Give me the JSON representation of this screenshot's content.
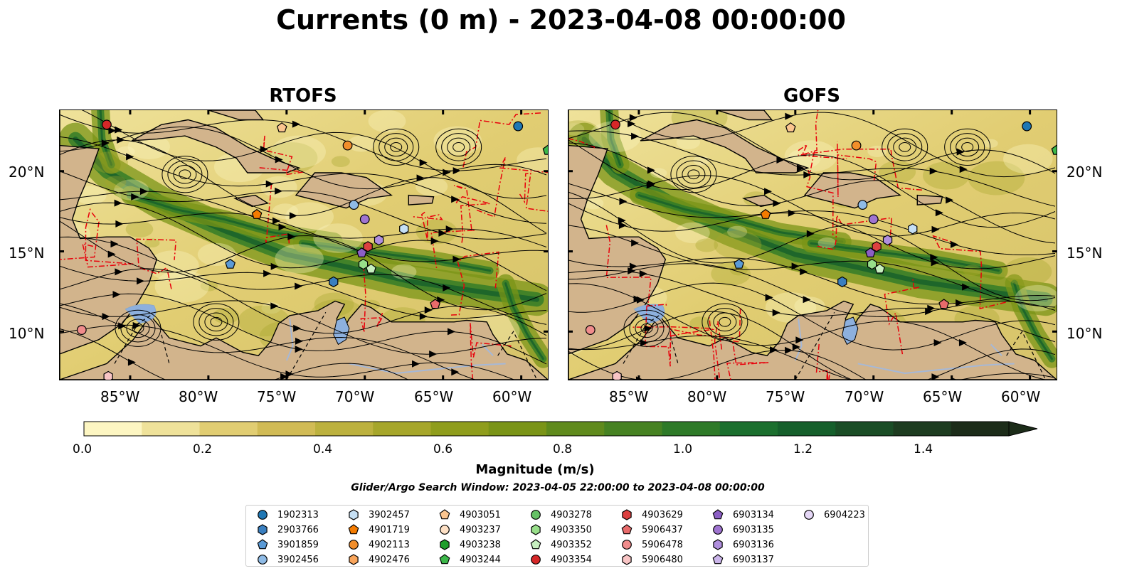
{
  "title": "Currents (0 m) - 2023-04-08 00:00:00",
  "panels": [
    {
      "title": "RTOFS"
    },
    {
      "title": "GOFS"
    }
  ],
  "lat_labels": [
    "20°N",
    "15°N",
    "10°N"
  ],
  "lon_labels": [
    "85°W",
    "80°W",
    "75°W",
    "70°W",
    "65°W",
    "60°W"
  ],
  "colorbar": {
    "label": "Magnitude (m/s)",
    "ticks": [
      "0.0",
      "0.2",
      "0.4",
      "0.6",
      "0.8",
      "1.0",
      "1.2",
      "1.4"
    ],
    "range": [
      0,
      1.6
    ],
    "step": 0.1,
    "extend": "max",
    "colors": [
      "#fdf6c2",
      "#efe29a",
      "#e1cd72",
      "#d1bb55",
      "#bcb13e",
      "#a6a62a",
      "#8f9d1c",
      "#7a9417",
      "#5f8a1c",
      "#468222",
      "#2e7a28",
      "#1b6f2e",
      "#155f2b",
      "#1a4d26",
      "#1d3c20",
      "#1c2c19"
    ]
  },
  "search_window": "Glider/Argo Search Window: 2023-04-05 22:00:00 to 2023-04-08 00:00:00",
  "land_color": "#d2b48c",
  "lake_color": "#8db0de",
  "legend": [
    {
      "id": "1902313",
      "color": "#1f77b4",
      "shape": "circle"
    },
    {
      "id": "2903766",
      "color": "#3a7fc0",
      "shape": "hexagon"
    },
    {
      "id": "3901859",
      "color": "#5a9ad6",
      "shape": "pentagon"
    },
    {
      "id": "3902456",
      "color": "#8fbbe6",
      "shape": "circle"
    },
    {
      "id": "3902457",
      "color": "#c6e0f5",
      "shape": "hexagon"
    },
    {
      "id": "4901719",
      "color": "#f47b00",
      "shape": "pentagon"
    },
    {
      "id": "4902113",
      "color": "#f28e2b",
      "shape": "circle"
    },
    {
      "id": "4902476",
      "color": "#f9a55b",
      "shape": "hexagon"
    },
    {
      "id": "4903051",
      "color": "#fbc58f",
      "shape": "pentagon"
    },
    {
      "id": "4903237",
      "color": "#fde0c5",
      "shape": "circle"
    },
    {
      "id": "4903238",
      "color": "#1f9e2c",
      "shape": "hexagon"
    },
    {
      "id": "4903244",
      "color": "#3cb84a",
      "shape": "pentagon"
    },
    {
      "id": "4903278",
      "color": "#66c266",
      "shape": "circle"
    },
    {
      "id": "4903350",
      "color": "#98df8a",
      "shape": "hexagon"
    },
    {
      "id": "4903352",
      "color": "#c7f0c0",
      "shape": "pentagon"
    },
    {
      "id": "4903354",
      "color": "#d62728",
      "shape": "circle"
    },
    {
      "id": "4903629",
      "color": "#dc4040",
      "shape": "hexagon"
    },
    {
      "id": "5906437",
      "color": "#e86b6b",
      "shape": "pentagon"
    },
    {
      "id": "5906478",
      "color": "#f08c8c",
      "shape": "circle"
    },
    {
      "id": "5906480",
      "color": "#f9c5c5",
      "shape": "hexagon"
    },
    {
      "id": "6903134",
      "color": "#8c5fc5",
      "shape": "pentagon"
    },
    {
      "id": "6903135",
      "color": "#9f74d0",
      "shape": "circle"
    },
    {
      "id": "6903136",
      "color": "#b08fde",
      "shape": "hexagon"
    },
    {
      "id": "6903137",
      "color": "#cbb5ea",
      "shape": "pentagon"
    },
    {
      "id": "6904223",
      "color": "#e5d7f6",
      "shape": "circle"
    }
  ],
  "floats": [
    {
      "id": "4903354",
      "lon": -86.5,
      "lat": 22.9
    },
    {
      "id": "4903051",
      "lon": -75.3,
      "lat": 22.7
    },
    {
      "id": "4902113",
      "lon": -71.1,
      "lat": 21.6
    },
    {
      "id": "1902313",
      "lon": -60.2,
      "lat": 22.8
    },
    {
      "id": "4903244",
      "lon": -58.3,
      "lat": 21.3
    },
    {
      "id": "4901719",
      "lon": -76.9,
      "lat": 17.3
    },
    {
      "id": "3902456",
      "lon": -70.7,
      "lat": 17.9
    },
    {
      "id": "6903135",
      "lon": -70.0,
      "lat": 17.0
    },
    {
      "id": "3902457",
      "lon": -67.5,
      "lat": 16.4
    },
    {
      "id": "6903136",
      "lon": -69.1,
      "lat": 15.7
    },
    {
      "id": "4903629",
      "lon": -69.8,
      "lat": 15.3
    },
    {
      "id": "6903134",
      "lon": -70.2,
      "lat": 14.9
    },
    {
      "id": "4903350",
      "lon": -70.1,
      "lat": 14.2
    },
    {
      "id": "4903352",
      "lon": -69.6,
      "lat": 13.9
    },
    {
      "id": "3901859",
      "lon": -78.6,
      "lat": 14.2
    },
    {
      "id": "2903766",
      "lon": -72.0,
      "lat": 13.1
    },
    {
      "id": "5906437",
      "lon": -65.5,
      "lat": 11.7
    },
    {
      "id": "5906478",
      "lon": -88.1,
      "lat": 10.1
    },
    {
      "id": "5906480",
      "lon": -86.4,
      "lat": 7.2
    }
  ]
}
